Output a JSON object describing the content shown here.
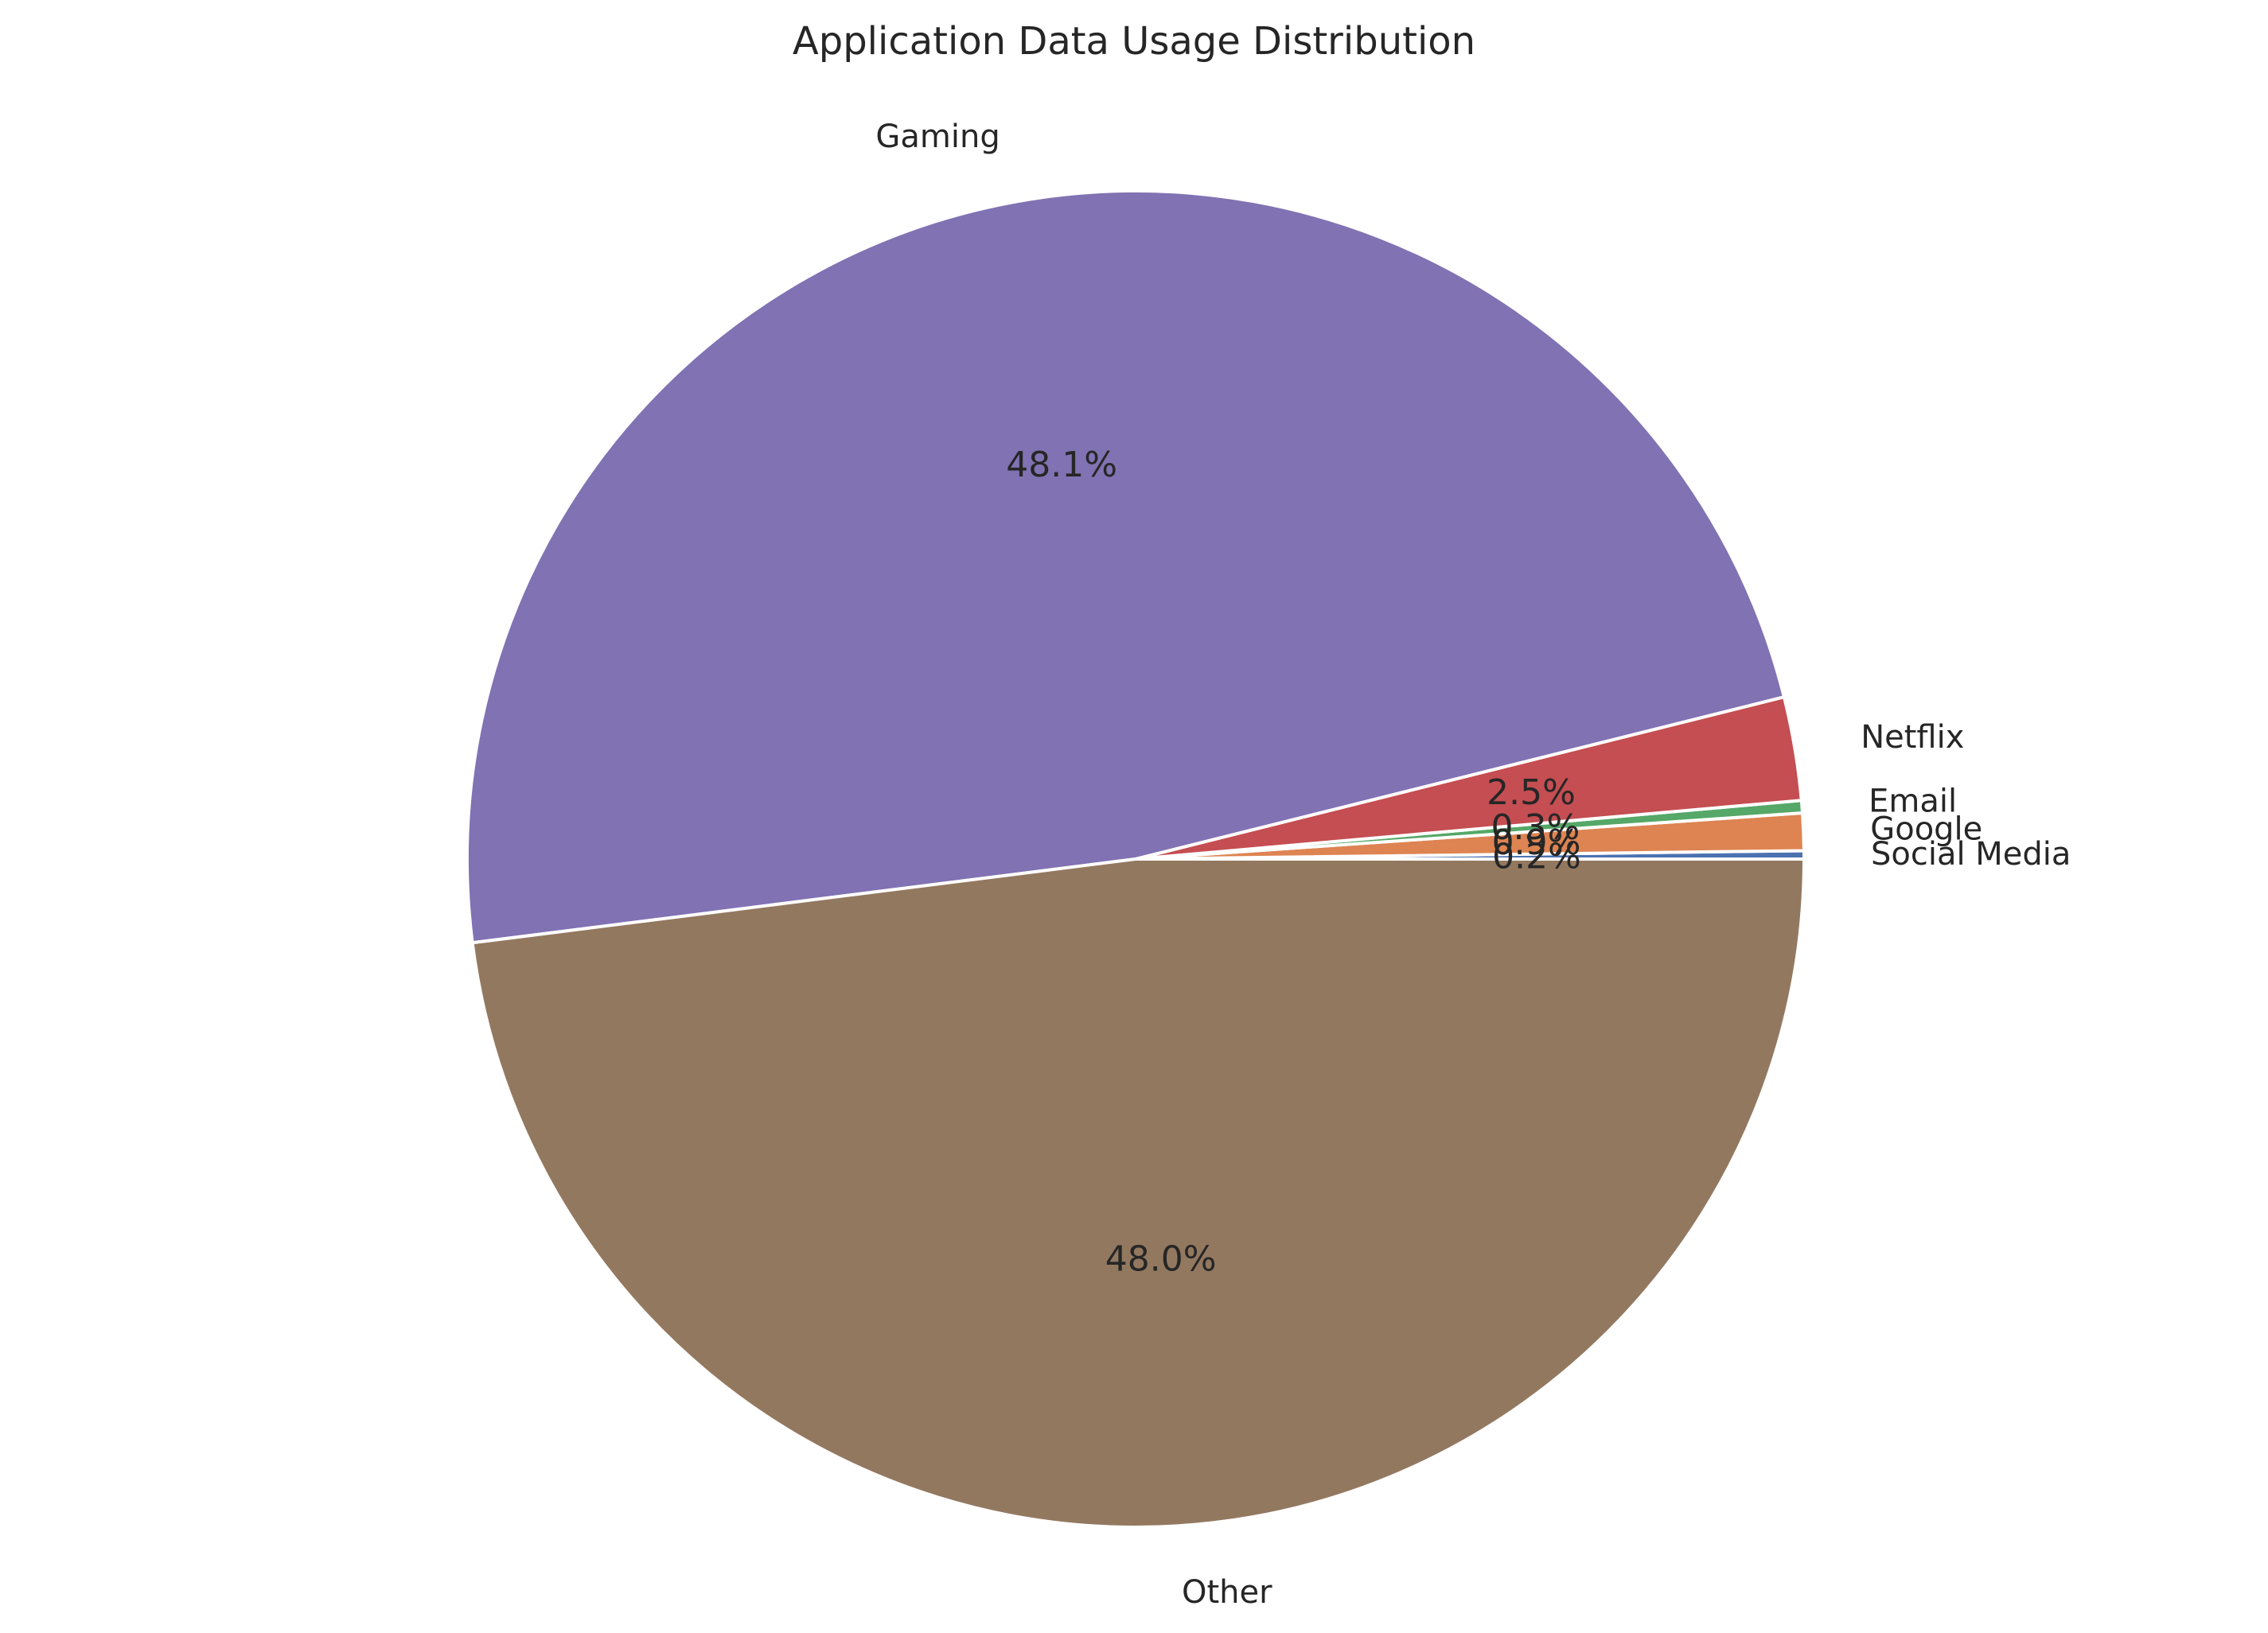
{
  "chart_data": {
    "type": "pie",
    "title": "Application Data Usage Distribution",
    "start_angle_deg": 0,
    "direction": "counterclockwise",
    "slices": [
      {
        "label": "Social Media",
        "value": 0.2,
        "pct_label": "0.2%",
        "color": "#4c72b0"
      },
      {
        "label": "Google",
        "value": 0.9,
        "pct_label": "0.9%",
        "color": "#dd8452"
      },
      {
        "label": "Email",
        "value": 0.3,
        "pct_label": "0.3%",
        "color": "#55a868"
      },
      {
        "label": "Netflix",
        "value": 2.5,
        "pct_label": "2.5%",
        "color": "#c44e52"
      },
      {
        "label": "Gaming",
        "value": 48.1,
        "pct_label": "48.1%",
        "color": "#8172b3"
      },
      {
        "label": "Other",
        "value": 48.0,
        "pct_label": "48.0%",
        "color": "#937860"
      }
    ]
  }
}
